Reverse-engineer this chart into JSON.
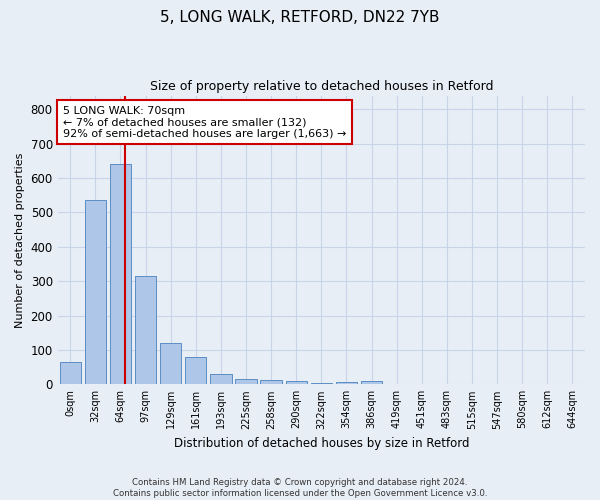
{
  "title1": "5, LONG WALK, RETFORD, DN22 7YB",
  "title2": "Size of property relative to detached houses in Retford",
  "xlabel": "Distribution of detached houses by size in Retford",
  "ylabel": "Number of detached properties",
  "categories": [
    "0sqm",
    "32sqm",
    "64sqm",
    "97sqm",
    "129sqm",
    "161sqm",
    "193sqm",
    "225sqm",
    "258sqm",
    "290sqm",
    "322sqm",
    "354sqm",
    "386sqm",
    "419sqm",
    "451sqm",
    "483sqm",
    "515sqm",
    "547sqm",
    "580sqm",
    "612sqm",
    "644sqm"
  ],
  "bar_values": [
    65,
    535,
    640,
    315,
    120,
    78,
    30,
    15,
    12,
    10,
    5,
    8,
    10,
    0,
    0,
    0,
    0,
    0,
    0,
    0,
    0
  ],
  "bar_color": "#aec6e8",
  "bar_edge_color": "#5b8ec4",
  "red_line_color": "#cc0000",
  "annotation_box_color": "#ffffff",
  "annotation_box_edge": "#cc0000",
  "annotation_line1": "5 LONG WALK: 70sqm",
  "annotation_line2": "← 7% of detached houses are smaller (132)",
  "annotation_line3": "92% of semi-detached houses are larger (1,663) →",
  "grid_color": "#c8d4e8",
  "background_color": "#e8eef6",
  "axes_background": "#e8eef6",
  "footer1": "Contains HM Land Registry data © Crown copyright and database right 2024.",
  "footer2": "Contains public sector information licensed under the Open Government Licence v3.0.",
  "ylim": [
    0,
    840
  ],
  "yticks": [
    0,
    100,
    200,
    300,
    400,
    500,
    600,
    700,
    800
  ],
  "red_line_x": 2.18
}
